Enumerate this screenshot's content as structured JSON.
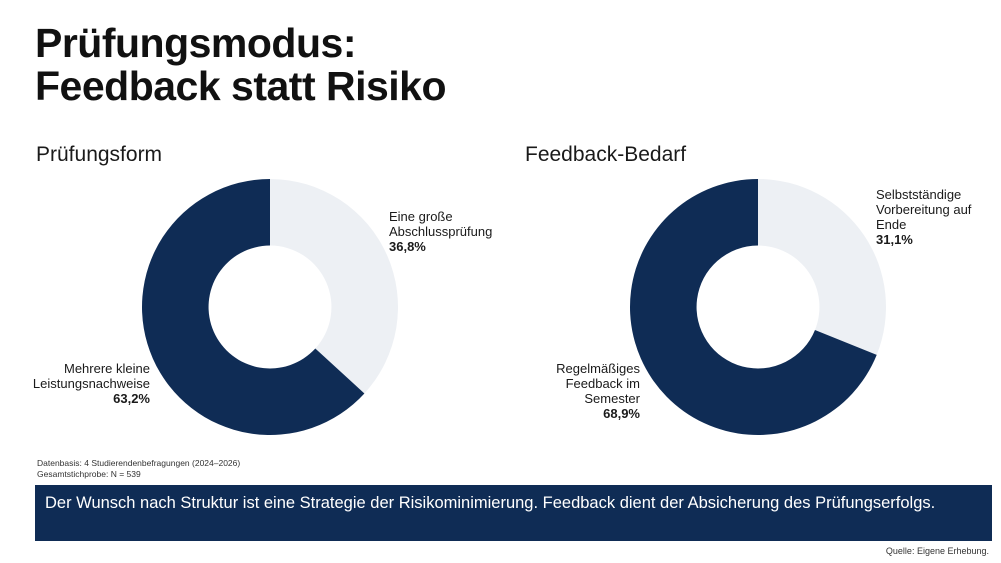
{
  "title": {
    "line1": "Prüfungsmodus:",
    "line2": "Feedback statt Risiko"
  },
  "colors": {
    "dark_navy": "#0f2c55",
    "light_gray": "#edf0f4",
    "banner": "#0f2c55"
  },
  "chart_data": [
    {
      "type": "pie",
      "title": "Prüfungsform",
      "slices": [
        {
          "label": "Eine große Abschlussprüfung",
          "label_lines": [
            "Eine große",
            "Abschlussprüfung"
          ],
          "value": 36.8,
          "value_label": "36,8%",
          "color": "#edf0f4"
        },
        {
          "label": "Mehrere kleine Leistungsnachweise",
          "label_lines": [
            "Mehrere kleine",
            "Leistungsnachweise"
          ],
          "value": 63.2,
          "value_label": "63,2%",
          "color": "#0f2c55"
        }
      ],
      "start_angle": 0,
      "direction": "clockwise",
      "hole_ratio": 0.48
    },
    {
      "type": "pie",
      "title": "Feedback-Bedarf",
      "slices": [
        {
          "label": "Selbstständige Vorbereitung auf Ende",
          "label_lines": [
            "Selbstständige",
            "Vorbereitung auf",
            "Ende"
          ],
          "value": 31.1,
          "value_label": "31,1%",
          "color": "#edf0f4"
        },
        {
          "label": "Regelmäßiges Feedback im Semester",
          "label_lines": [
            "Regelmäßiges",
            "Feedback im",
            "Semester"
          ],
          "value": 68.9,
          "value_label": "68,9%",
          "color": "#0f2c55"
        }
      ],
      "start_angle": 0,
      "direction": "clockwise",
      "hole_ratio": 0.48
    }
  ],
  "footnote": {
    "line1": "Datenbasis: 4 Studierendenbefragungen (2024–2026)",
    "line2": "Gesamtstichprobe: N = 539"
  },
  "banner_text": "Der Wunsch nach Struktur ist eine Strategie der Risikominimierung. Feedback dient der Absicherung des Prüfungserfolgs.",
  "source": "Quelle: Eigene Erhebung."
}
